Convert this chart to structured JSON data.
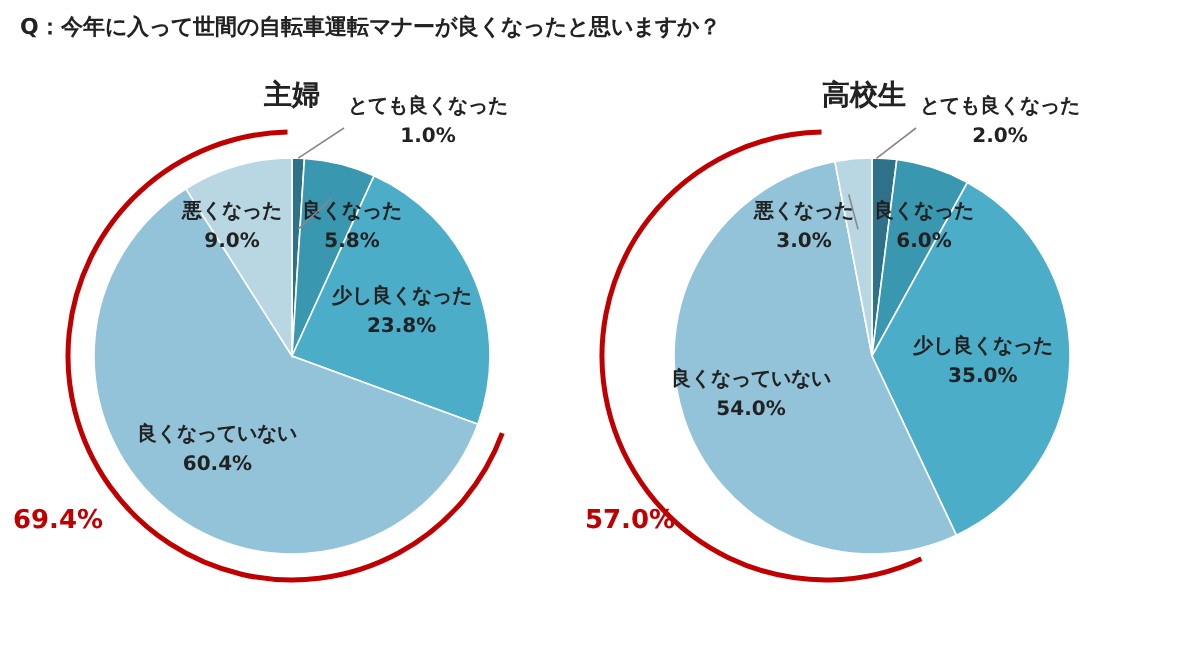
{
  "chart_data": [
    {
      "type": "pie",
      "title": "主婦",
      "categories": [
        "とても良くなった",
        "良くなった",
        "少し良くなった",
        "良くなっていない",
        "悪くなった"
      ],
      "values": [
        1.0,
        5.8,
        23.8,
        60.4,
        9.0
      ],
      "colors": [
        "#2e7189",
        "#3a97b0",
        "#4badc8",
        "#93c3d8",
        "#b9d7e3"
      ],
      "value_labels": [
        "1.0%",
        "5.8%",
        "23.8%",
        "60.4%",
        "9.0%"
      ],
      "annotations": [
        "Q：今年に入って世間の自転車運転マナーが良くなったと思いますか？",
        "69.4%"
      ]
    },
    {
      "type": "pie",
      "title": "高校生",
      "categories": [
        "とても良くなった",
        "良くなった",
        "少し良くなった",
        "良くなっていない",
        "悪くなった"
      ],
      "values": [
        2.0,
        6.0,
        35.0,
        54.0,
        3.0
      ],
      "colors": [
        "#2e7189",
        "#3a97b0",
        "#4badc8",
        "#93c3d8",
        "#b9d7e3"
      ],
      "value_labels": [
        "2.0%",
        "6.0%",
        "35.0%",
        "54.0%",
        "3.0%"
      ],
      "annotations": [
        "57.0%"
      ]
    }
  ]
}
